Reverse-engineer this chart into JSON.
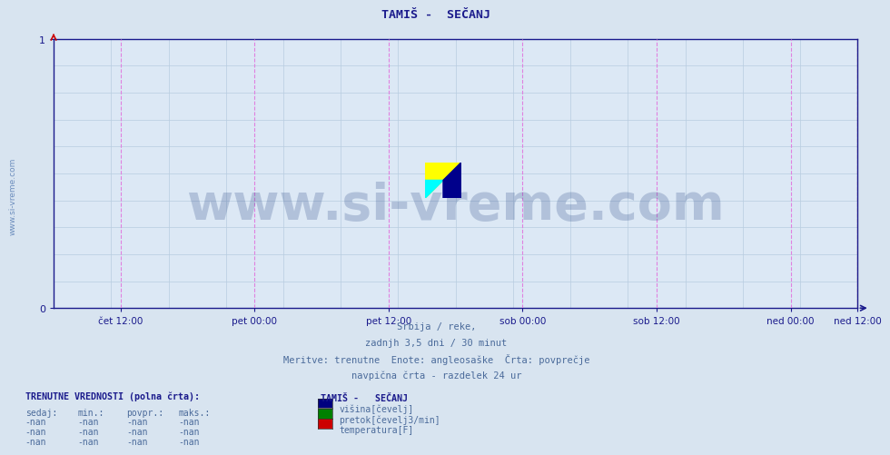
{
  "title": "TAMIŠ -  SEČANJ",
  "title_color": "#1a1a8c",
  "title_fontsize": 9.5,
  "bg_color": "#d8e4f0",
  "plot_bg_color": "#dce8f5",
  "xlim": [
    0,
    1
  ],
  "ylim": [
    0,
    1
  ],
  "yticks": [
    0,
    1
  ],
  "ytick_labels": [
    "0",
    "1"
  ],
  "xtick_labels": [
    "čet 12:00",
    "pet 00:00",
    "pet 12:00",
    "sob 00:00",
    "sob 12:00",
    "ned 00:00",
    "ned 12:00"
  ],
  "xtick_positions": [
    0.0833,
    0.25,
    0.4167,
    0.5833,
    0.75,
    0.9167,
    1.0
  ],
  "vline_positions": [
    0.0833,
    0.25,
    0.4167,
    0.5833,
    0.75,
    0.9167
  ],
  "vline_color_dashed": "#e080e0",
  "vline_right_color": "#ff0000",
  "grid_color": "#b8cce0",
  "grid_hcolor": "#b8cce0",
  "axis_color": "#1a1a8c",
  "tick_color": "#1a1a8c",
  "watermark_text": "www.si-vreme.com",
  "watermark_color": "#1a3a7a",
  "watermark_alpha": 0.22,
  "watermark_fontsize": 40,
  "sidewater_text": "www.si-vreme.com",
  "sidewater_color": "#5a7fb5",
  "sidewater_fontsize": 6.5,
  "subtitle_lines": [
    "Srbija / reke,",
    "zadnjh 3,5 dni / 30 minut",
    "Meritve: trenutne  Enote: angleosaške  Črta: povprečje",
    "navpična črta - razdelek 24 ur"
  ],
  "subtitle_color": "#4a6a9a",
  "subtitle_fontsize": 7.5,
  "legend_title": "TAMIŠ -   SEČANJ",
  "legend_title_color": "#1a1a8c",
  "legend_items": [
    {
      "label": "višina[čevelj]",
      "color": "#000080"
    },
    {
      "label": "pretok[čevelj3/min]",
      "color": "#008000"
    },
    {
      "label": "temperatura[F]",
      "color": "#cc0000"
    }
  ],
  "table_header": [
    "sedaj:",
    "min.:",
    "povpr.:",
    "maks.:"
  ],
  "table_values": [
    [
      "-nan",
      "-nan",
      "-nan",
      "-nan"
    ],
    [
      "-nan",
      "-nan",
      "-nan",
      "-nan"
    ],
    [
      "-nan",
      "-nan",
      "-nan",
      "-nan"
    ]
  ],
  "table_label": "TRENUTNE VREDNOSTI (polna črta):",
  "table_label_color": "#1a1a8c",
  "table_color": "#4a6a9a",
  "num_hgrid_lines": 10
}
